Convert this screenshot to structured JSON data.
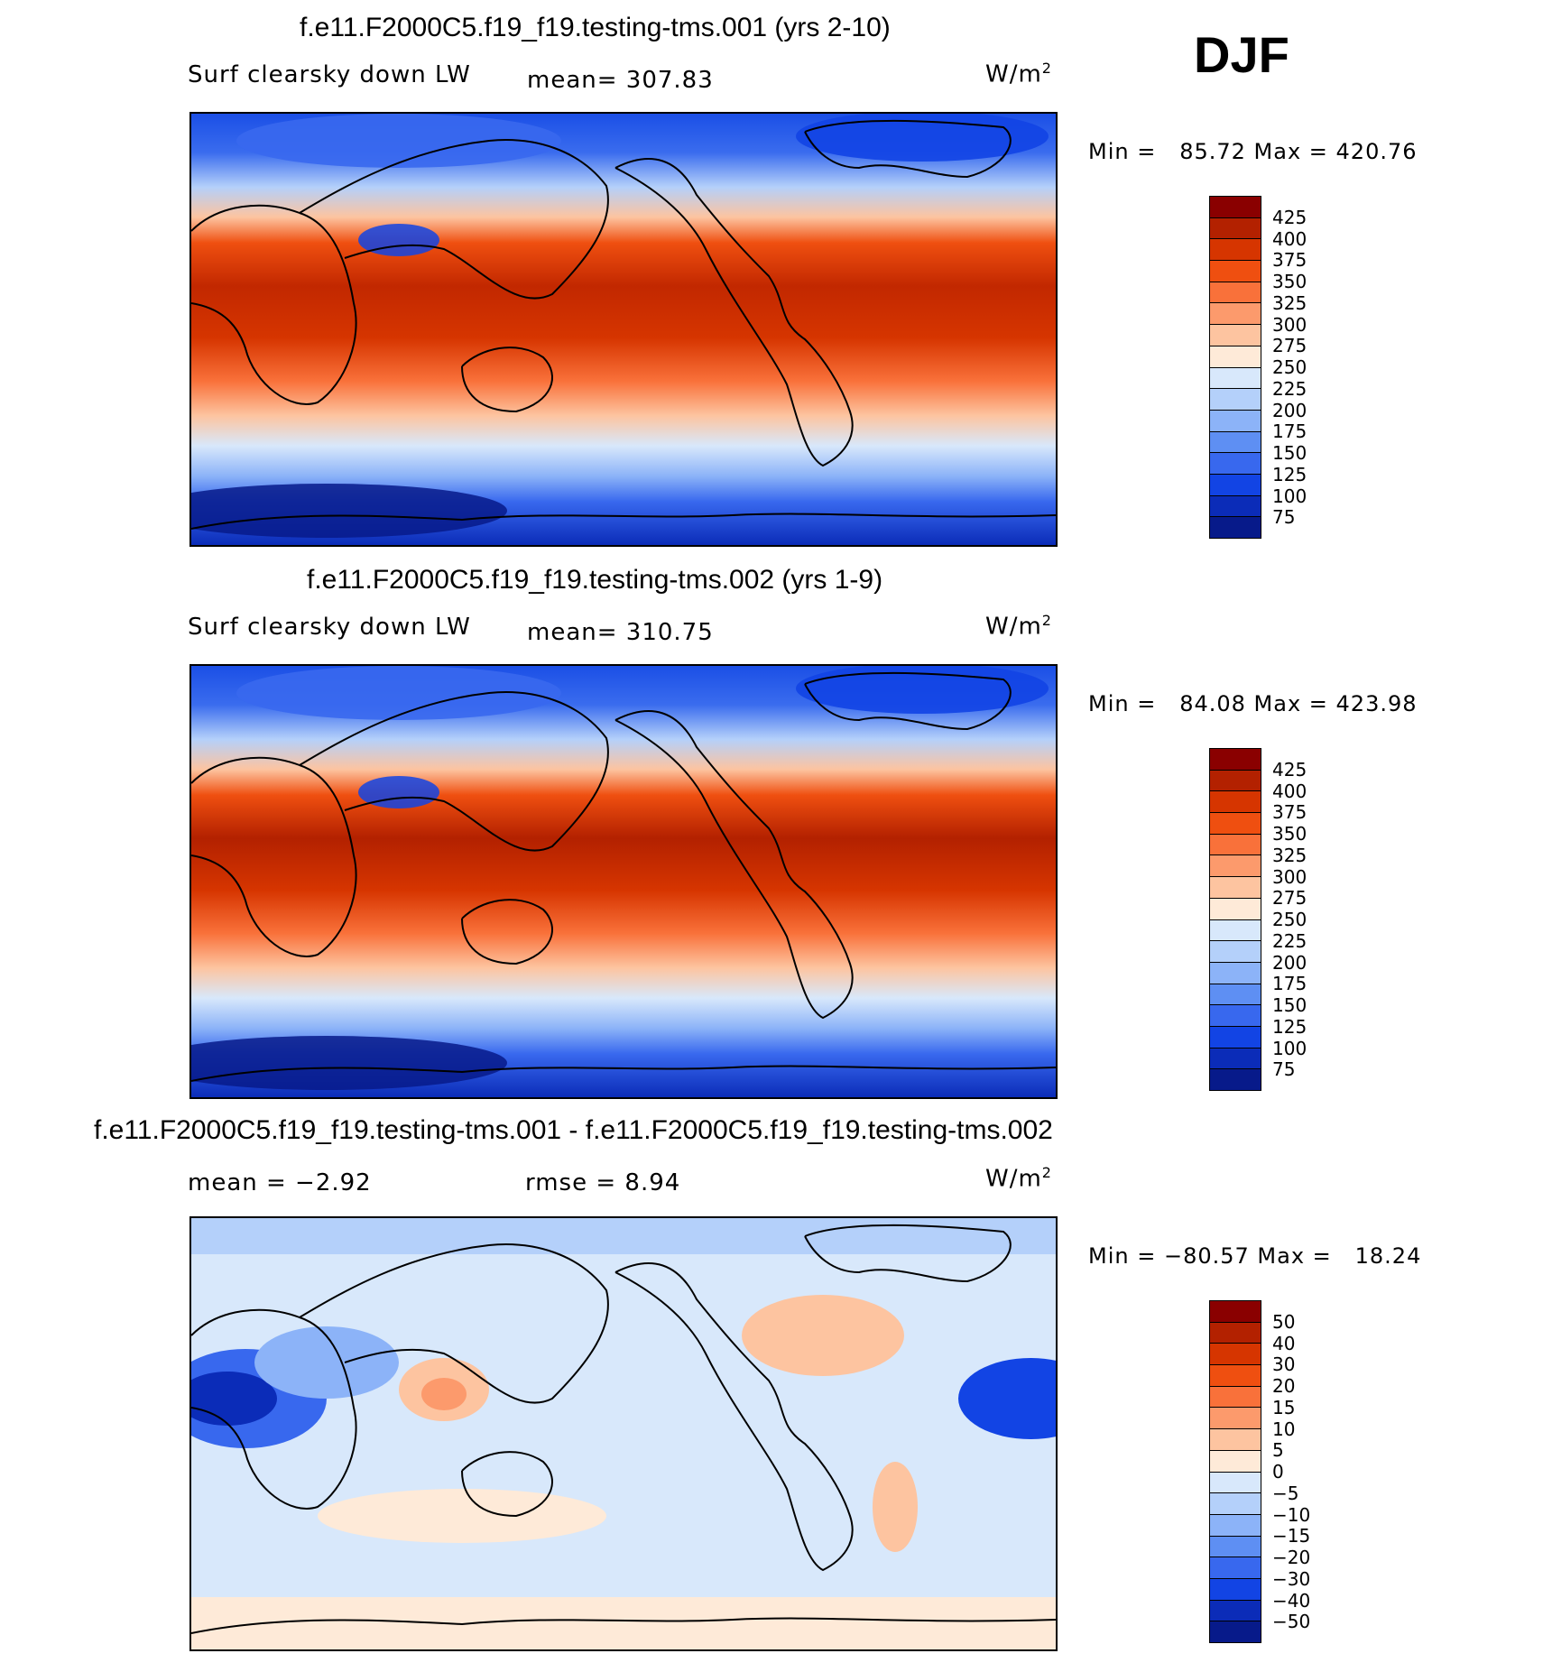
{
  "season": "DJF",
  "units_main": "W/m",
  "units_sup": "2",
  "panels": [
    {
      "title": "f.e11.F2000C5.f19_f19.testing-tms.001 (yrs 2-10)",
      "variable": "Surf clearsky down LW",
      "stat": "mean= 307.83",
      "minmax": "Min =   85.72 Max = 420.76"
    },
    {
      "title": "f.e11.F2000C5.f19_f19.testing-tms.002 (yrs 1-9)",
      "variable": "Surf clearsky down LW",
      "stat": "mean= 310.75",
      "minmax": "Min =   84.08 Max = 423.98"
    },
    {
      "title": "f.e11.F2000C5.f19_f19.testing-tms.001 - f.e11.F2000C5.f19_f19.testing-tms.002",
      "variable": "mean =   −2.92",
      "stat": "rmse =    8.94",
      "minmax": "Min = −80.57 Max =   18.24"
    }
  ],
  "colorbars": {
    "absolute": {
      "labels": [
        "425",
        "400",
        "375",
        "350",
        "325",
        "300",
        "275",
        "250",
        "225",
        "200",
        "175",
        "150",
        "125",
        "100",
        "75"
      ],
      "colors": [
        "#8a0000",
        "#b32100",
        "#d63500",
        "#ef4f10",
        "#f9713a",
        "#fc9a6c",
        "#fdc4a0",
        "#feead8",
        "#d8e8fb",
        "#b4d0fa",
        "#8cb3f8",
        "#5e8ff3",
        "#3868ee",
        "#1244e4",
        "#0b2cb8",
        "#071a8a"
      ]
    },
    "difference": {
      "labels": [
        "50",
        "40",
        "30",
        "20",
        "15",
        "10",
        "5",
        "0",
        "−5",
        "−10",
        "−15",
        "−20",
        "−30",
        "−40",
        "−50"
      ],
      "colors": [
        "#8a0000",
        "#b32100",
        "#d63500",
        "#ef4f10",
        "#f9713a",
        "#fc9a6c",
        "#fdc4a0",
        "#feead8",
        "#d8e8fb",
        "#b4d0fa",
        "#8cb3f8",
        "#5e8ff3",
        "#3868ee",
        "#1244e4",
        "#0b2cb8",
        "#071a8a"
      ]
    }
  },
  "chart_data": [
    {
      "type": "heatmap",
      "title": "f.e11.F2000C5.f19_f19.testing-tms.001 (yrs 2-10)",
      "variable": "Surf clearsky down LW",
      "units": "W/m2",
      "mean": 307.83,
      "min": 85.72,
      "max": 420.76,
      "levels": [
        75,
        100,
        125,
        150,
        175,
        200,
        225,
        250,
        275,
        300,
        325,
        350,
        375,
        400,
        425
      ]
    },
    {
      "type": "heatmap",
      "title": "f.e11.F2000C5.f19_f19.testing-tms.002 (yrs 1-9)",
      "variable": "Surf clearsky down LW",
      "units": "W/m2",
      "mean": 310.75,
      "min": 84.08,
      "max": 423.98,
      "levels": [
        75,
        100,
        125,
        150,
        175,
        200,
        225,
        250,
        275,
        300,
        325,
        350,
        375,
        400,
        425
      ]
    },
    {
      "type": "heatmap",
      "title": "f.e11.F2000C5.f19_f19.testing-tms.001 - f.e11.F2000C5.f19_f19.testing-tms.002",
      "units": "W/m2",
      "mean": -2.92,
      "rmse": 8.94,
      "min": -80.57,
      "max": 18.24,
      "levels": [
        -50,
        -40,
        -30,
        -20,
        -15,
        -10,
        -5,
        0,
        5,
        10,
        15,
        20,
        30,
        40,
        50
      ]
    }
  ]
}
